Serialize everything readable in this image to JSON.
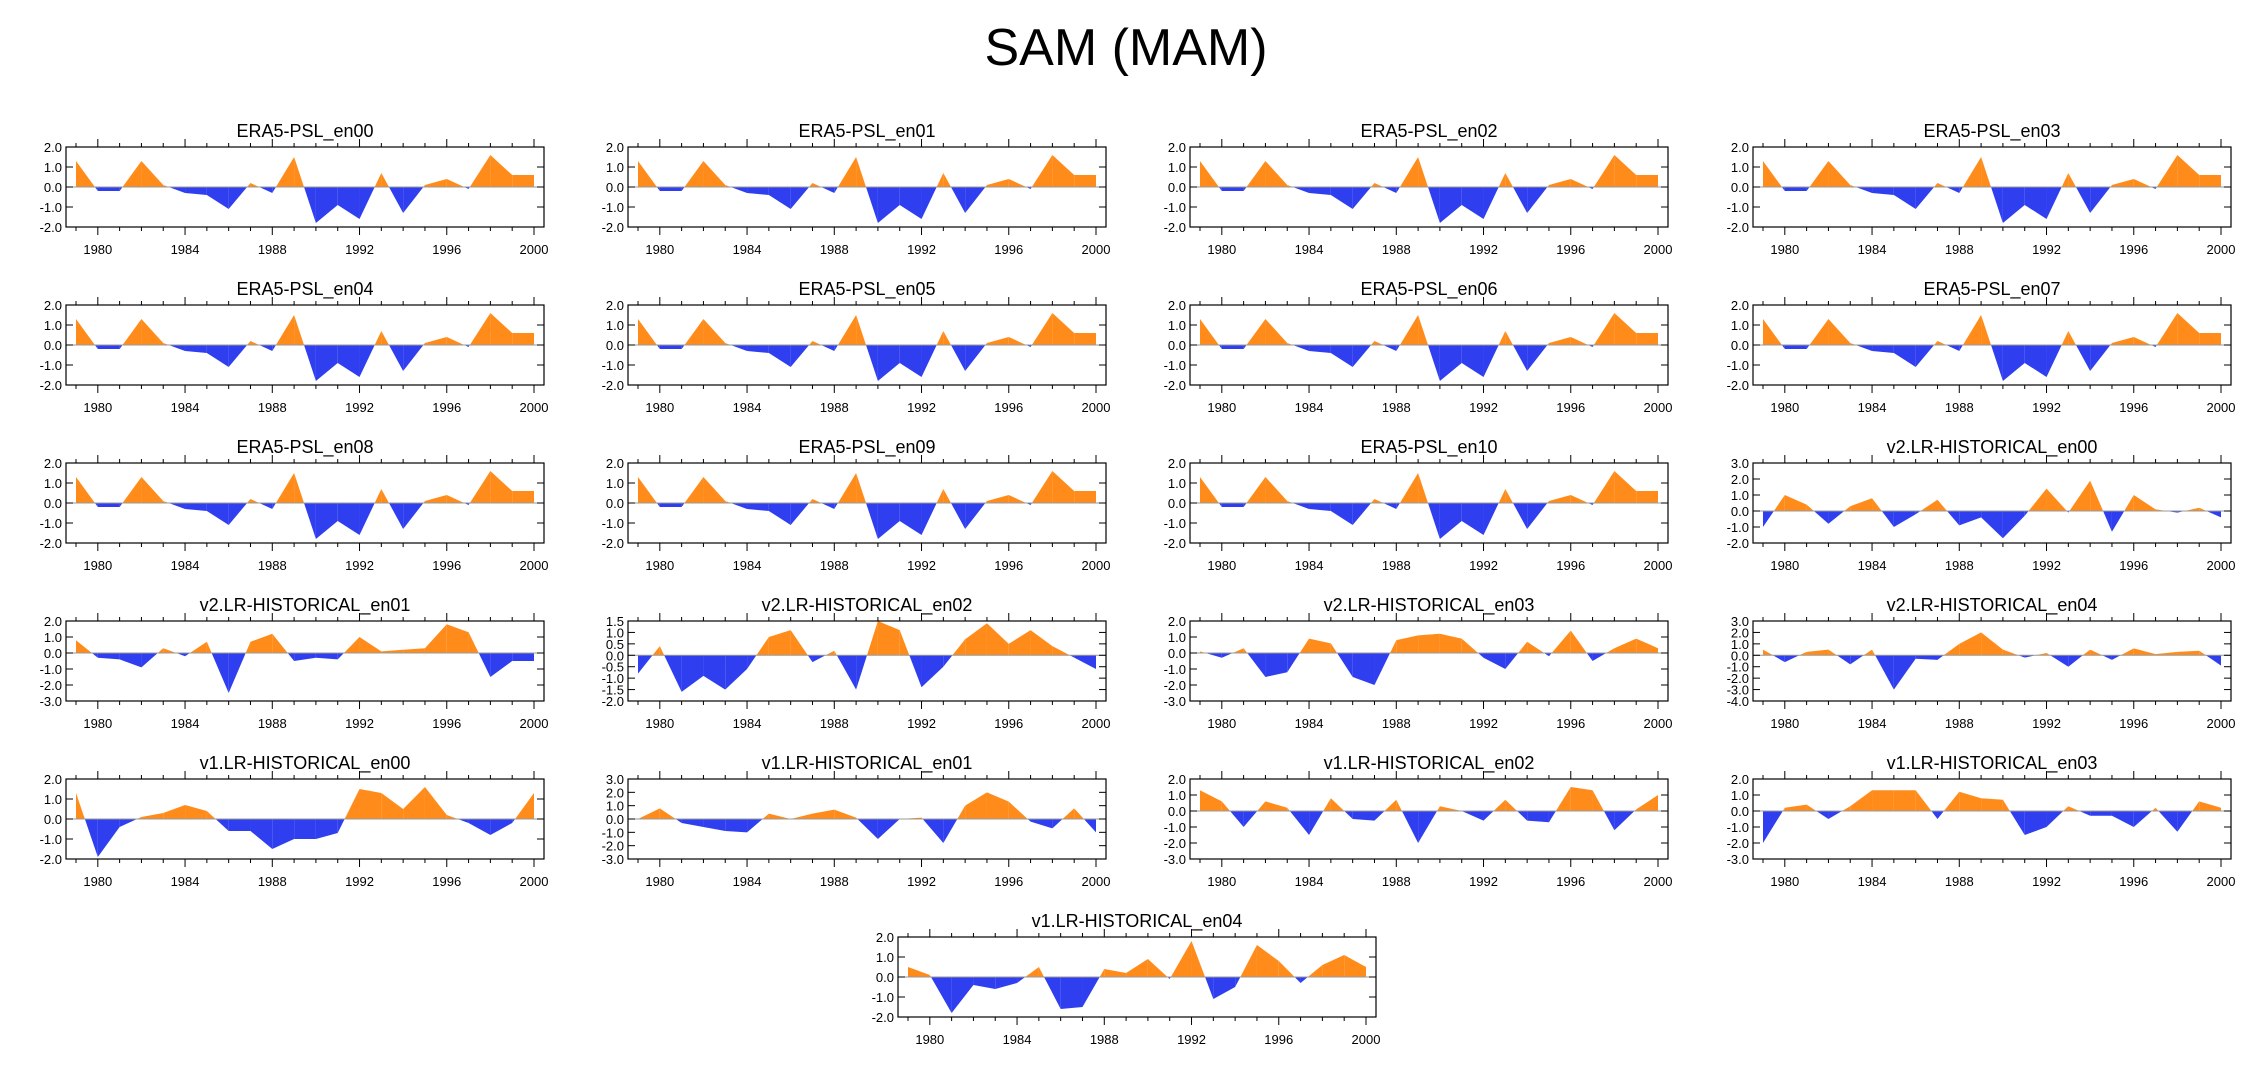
{
  "figure": {
    "title": "SAM (MAM)"
  },
  "colors": {
    "positive": "#ff8c1a",
    "negative": "#2f3ff0",
    "axis": "#000000",
    "zero_line": "#999999"
  },
  "chart_data": [
    {
      "type": "area",
      "title": "ERA5-PSL_en00",
      "x_start": 1979,
      "x_end": 2000,
      "xticks": [
        1980,
        1984,
        1988,
        1992,
        1996,
        2000
      ],
      "ylim": [
        -2.0,
        2.0
      ],
      "yticks": [
        "2.0",
        "1.0",
        "0.0",
        "-1.0",
        "-2.0"
      ],
      "ytick_values": [
        2,
        1,
        0,
        -1,
        -2
      ],
      "values": [
        1.3,
        -0.2,
        -0.2,
        1.3,
        0.1,
        -0.3,
        -0.4,
        -1.1,
        0.2,
        -0.3,
        1.5,
        -1.8,
        -0.9,
        -1.6,
        0.7,
        -1.3,
        0.1,
        0.4,
        -0.1,
        1.6,
        0.6,
        0.6
      ]
    },
    {
      "type": "area",
      "title": "ERA5-PSL_en01",
      "x_start": 1979,
      "x_end": 2000,
      "xticks": [
        1980,
        1984,
        1988,
        1992,
        1996,
        2000
      ],
      "ylim": [
        -2.0,
        2.0
      ],
      "yticks": [
        "2.0",
        "1.0",
        "0.0",
        "-1.0",
        "-2.0"
      ],
      "ytick_values": [
        2,
        1,
        0,
        -1,
        -2
      ],
      "values": [
        1.3,
        -0.2,
        -0.2,
        1.3,
        0.1,
        -0.3,
        -0.4,
        -1.1,
        0.2,
        -0.3,
        1.5,
        -1.8,
        -0.9,
        -1.6,
        0.7,
        -1.3,
        0.1,
        0.4,
        -0.1,
        1.6,
        0.6,
        0.6
      ]
    },
    {
      "type": "area",
      "title": "ERA5-PSL_en02",
      "x_start": 1979,
      "x_end": 2000,
      "xticks": [
        1980,
        1984,
        1988,
        1992,
        1996,
        2000
      ],
      "ylim": [
        -2.0,
        2.0
      ],
      "yticks": [
        "2.0",
        "1.0",
        "0.0",
        "-1.0",
        "-2.0"
      ],
      "ytick_values": [
        2,
        1,
        0,
        -1,
        -2
      ],
      "values": [
        1.3,
        -0.2,
        -0.2,
        1.3,
        0.1,
        -0.3,
        -0.4,
        -1.1,
        0.2,
        -0.3,
        1.5,
        -1.8,
        -0.9,
        -1.6,
        0.7,
        -1.3,
        0.1,
        0.4,
        -0.1,
        1.6,
        0.6,
        0.6
      ]
    },
    {
      "type": "area",
      "title": "ERA5-PSL_en03",
      "x_start": 1979,
      "x_end": 2000,
      "xticks": [
        1980,
        1984,
        1988,
        1992,
        1996,
        2000
      ],
      "ylim": [
        -2.0,
        2.0
      ],
      "yticks": [
        "2.0",
        "1.0",
        "0.0",
        "-1.0",
        "-2.0"
      ],
      "ytick_values": [
        2,
        1,
        0,
        -1,
        -2
      ],
      "values": [
        1.3,
        -0.2,
        -0.2,
        1.3,
        0.1,
        -0.3,
        -0.4,
        -1.1,
        0.2,
        -0.3,
        1.5,
        -1.8,
        -0.9,
        -1.6,
        0.7,
        -1.3,
        0.1,
        0.4,
        -0.1,
        1.6,
        0.6,
        0.6
      ]
    },
    {
      "type": "area",
      "title": "ERA5-PSL_en04",
      "x_start": 1979,
      "x_end": 2000,
      "xticks": [
        1980,
        1984,
        1988,
        1992,
        1996,
        2000
      ],
      "ylim": [
        -2.0,
        2.0
      ],
      "yticks": [
        "2.0",
        "1.0",
        "0.0",
        "-1.0",
        "-2.0"
      ],
      "ytick_values": [
        2,
        1,
        0,
        -1,
        -2
      ],
      "values": [
        1.3,
        -0.2,
        -0.2,
        1.3,
        0.1,
        -0.3,
        -0.4,
        -1.1,
        0.2,
        -0.3,
        1.5,
        -1.8,
        -0.9,
        -1.6,
        0.7,
        -1.3,
        0.1,
        0.4,
        -0.1,
        1.6,
        0.6,
        0.6
      ]
    },
    {
      "type": "area",
      "title": "ERA5-PSL_en05",
      "x_start": 1979,
      "x_end": 2000,
      "xticks": [
        1980,
        1984,
        1988,
        1992,
        1996,
        2000
      ],
      "ylim": [
        -2.0,
        2.0
      ],
      "yticks": [
        "2.0",
        "1.0",
        "0.0",
        "-1.0",
        "-2.0"
      ],
      "ytick_values": [
        2,
        1,
        0,
        -1,
        -2
      ],
      "values": [
        1.3,
        -0.2,
        -0.2,
        1.3,
        0.1,
        -0.3,
        -0.4,
        -1.1,
        0.2,
        -0.3,
        1.5,
        -1.8,
        -0.9,
        -1.6,
        0.7,
        -1.3,
        0.1,
        0.4,
        -0.1,
        1.6,
        0.6,
        0.6
      ]
    },
    {
      "type": "area",
      "title": "ERA5-PSL_en06",
      "x_start": 1979,
      "x_end": 2000,
      "xticks": [
        1980,
        1984,
        1988,
        1992,
        1996,
        2000
      ],
      "ylim": [
        -2.0,
        2.0
      ],
      "yticks": [
        "2.0",
        "1.0",
        "0.0",
        "-1.0",
        "-2.0"
      ],
      "ytick_values": [
        2,
        1,
        0,
        -1,
        -2
      ],
      "values": [
        1.3,
        -0.2,
        -0.2,
        1.3,
        0.1,
        -0.3,
        -0.4,
        -1.1,
        0.2,
        -0.3,
        1.5,
        -1.8,
        -0.9,
        -1.6,
        0.7,
        -1.3,
        0.1,
        0.4,
        -0.1,
        1.6,
        0.6,
        0.6
      ]
    },
    {
      "type": "area",
      "title": "ERA5-PSL_en07",
      "x_start": 1979,
      "x_end": 2000,
      "xticks": [
        1980,
        1984,
        1988,
        1992,
        1996,
        2000
      ],
      "ylim": [
        -2.0,
        2.0
      ],
      "yticks": [
        "2.0",
        "1.0",
        "0.0",
        "-1.0",
        "-2.0"
      ],
      "ytick_values": [
        2,
        1,
        0,
        -1,
        -2
      ],
      "values": [
        1.3,
        -0.2,
        -0.2,
        1.3,
        0.1,
        -0.3,
        -0.4,
        -1.1,
        0.2,
        -0.3,
        1.5,
        -1.8,
        -0.9,
        -1.6,
        0.7,
        -1.3,
        0.1,
        0.4,
        -0.1,
        1.6,
        0.6,
        0.6
      ]
    },
    {
      "type": "area",
      "title": "ERA5-PSL_en08",
      "x_start": 1979,
      "x_end": 2000,
      "xticks": [
        1980,
        1984,
        1988,
        1992,
        1996,
        2000
      ],
      "ylim": [
        -2.0,
        2.0
      ],
      "yticks": [
        "2.0",
        "1.0",
        "0.0",
        "-1.0",
        "-2.0"
      ],
      "ytick_values": [
        2,
        1,
        0,
        -1,
        -2
      ],
      "values": [
        1.3,
        -0.2,
        -0.2,
        1.3,
        0.1,
        -0.3,
        -0.4,
        -1.1,
        0.2,
        -0.3,
        1.5,
        -1.8,
        -0.9,
        -1.6,
        0.7,
        -1.3,
        0.1,
        0.4,
        -0.1,
        1.6,
        0.6,
        0.6
      ]
    },
    {
      "type": "area",
      "title": "ERA5-PSL_en09",
      "x_start": 1979,
      "x_end": 2000,
      "xticks": [
        1980,
        1984,
        1988,
        1992,
        1996,
        2000
      ],
      "ylim": [
        -2.0,
        2.0
      ],
      "yticks": [
        "2.0",
        "1.0",
        "0.0",
        "-1.0",
        "-2.0"
      ],
      "ytick_values": [
        2,
        1,
        0,
        -1,
        -2
      ],
      "values": [
        1.3,
        -0.2,
        -0.2,
        1.3,
        0.1,
        -0.3,
        -0.4,
        -1.1,
        0.2,
        -0.3,
        1.5,
        -1.8,
        -0.9,
        -1.6,
        0.7,
        -1.3,
        0.1,
        0.4,
        -0.1,
        1.6,
        0.6,
        0.6
      ]
    },
    {
      "type": "area",
      "title": "ERA5-PSL_en10",
      "x_start": 1979,
      "x_end": 2000,
      "xticks": [
        1980,
        1984,
        1988,
        1992,
        1996,
        2000
      ],
      "ylim": [
        -2.0,
        2.0
      ],
      "yticks": [
        "2.0",
        "1.0",
        "0.0",
        "-1.0",
        "-2.0"
      ],
      "ytick_values": [
        2,
        1,
        0,
        -1,
        -2
      ],
      "values": [
        1.3,
        -0.2,
        -0.2,
        1.3,
        0.1,
        -0.3,
        -0.4,
        -1.1,
        0.2,
        -0.3,
        1.5,
        -1.8,
        -0.9,
        -1.6,
        0.7,
        -1.3,
        0.1,
        0.4,
        -0.1,
        1.6,
        0.6,
        0.6
      ]
    },
    {
      "type": "area",
      "title": "v2.LR-HISTORICAL_en00",
      "x_start": 1979,
      "x_end": 2000,
      "xticks": [
        1980,
        1984,
        1988,
        1992,
        1996,
        2000
      ],
      "ylim": [
        -2.0,
        3.0
      ],
      "yticks": [
        "3.0",
        "2.0",
        "1.0",
        "0.0",
        "-1.0",
        "-2.0"
      ],
      "ytick_values": [
        3,
        2,
        1,
        0,
        -1,
        -2
      ],
      "values": [
        -1.0,
        1.0,
        0.4,
        -0.8,
        0.3,
        0.8,
        -1.0,
        -0.2,
        0.7,
        -0.9,
        -0.4,
        -1.7,
        -0.3,
        1.4,
        -0.1,
        1.9,
        -1.3,
        1.0,
        0.1,
        -0.1,
        0.2,
        -0.4
      ]
    },
    {
      "type": "area",
      "title": "v2.LR-HISTORICAL_en01",
      "x_start": 1979,
      "x_end": 2000,
      "xticks": [
        1980,
        1984,
        1988,
        1992,
        1996,
        2000
      ],
      "ylim": [
        -3.0,
        2.0
      ],
      "yticks": [
        "2.0",
        "1.0",
        "0.0",
        "-1.0",
        "-2.0",
        "-3.0"
      ],
      "ytick_values": [
        2,
        1,
        0,
        -1,
        -2,
        -3
      ],
      "values": [
        0.8,
        -0.3,
        -0.4,
        -0.9,
        0.3,
        -0.2,
        0.7,
        -2.5,
        0.7,
        1.2,
        -0.5,
        -0.3,
        -0.4,
        1.0,
        0.1,
        0.2,
        0.3,
        1.8,
        1.3,
        -1.5,
        -0.5,
        -0.5
      ]
    },
    {
      "type": "area",
      "title": "v2.LR-HISTORICAL_en02",
      "x_start": 1979,
      "x_end": 2000,
      "xticks": [
        1980,
        1984,
        1988,
        1992,
        1996,
        2000
      ],
      "ylim": [
        -2.0,
        1.5
      ],
      "yticks": [
        "1.5",
        "1.0",
        "0.5",
        "0.0",
        "-0.5",
        "-1.0",
        "-1.5",
        "-2.0"
      ],
      "ytick_values": [
        1.5,
        1,
        0.5,
        0,
        -0.5,
        -1,
        -1.5,
        -2
      ],
      "values": [
        -0.8,
        0.4,
        -1.6,
        -0.9,
        -1.5,
        -0.6,
        0.8,
        1.1,
        -0.3,
        0.2,
        -1.5,
        1.5,
        1.1,
        -1.4,
        -0.5,
        0.7,
        1.4,
        0.5,
        1.1,
        0.4,
        -0.1,
        -0.6
      ]
    },
    {
      "type": "area",
      "title": "v2.LR-HISTORICAL_en03",
      "x_start": 1979,
      "x_end": 2000,
      "xticks": [
        1980,
        1984,
        1988,
        1992,
        1996,
        2000
      ],
      "ylim": [
        -3.0,
        2.0
      ],
      "yticks": [
        "2.0",
        "1.0",
        "0.0",
        "-1.0",
        "-2.0",
        "-3.0"
      ],
      "ytick_values": [
        2,
        1,
        0,
        -1,
        -2,
        -3
      ],
      "values": [
        0.1,
        -0.3,
        0.3,
        -1.5,
        -1.2,
        0.9,
        0.6,
        -1.5,
        -2.0,
        0.8,
        1.1,
        1.2,
        0.9,
        -0.3,
        -1.0,
        0.7,
        -0.2,
        1.4,
        -0.5,
        0.3,
        0.9,
        0.3
      ]
    },
    {
      "type": "area",
      "title": "v2.LR-HISTORICAL_en04",
      "x_start": 1979,
      "x_end": 2000,
      "xticks": [
        1980,
        1984,
        1988,
        1992,
        1996,
        2000
      ],
      "ylim": [
        -4.0,
        3.0
      ],
      "yticks": [
        "3.0",
        "2.0",
        "1.0",
        "0.0",
        "-1.0",
        "-2.0",
        "-3.0",
        "-4.0"
      ],
      "ytick_values": [
        3,
        2,
        1,
        0,
        -1,
        -2,
        -3,
        -4
      ],
      "values": [
        0.5,
        -0.6,
        0.3,
        0.5,
        -0.8,
        0.5,
        -3.0,
        -0.3,
        -0.4,
        1.0,
        2.0,
        0.5,
        -0.2,
        0.2,
        -1.0,
        0.5,
        -0.4,
        0.6,
        0.1,
        0.3,
        0.4,
        -0.9
      ]
    },
    {
      "type": "area",
      "title": "v1.LR-HISTORICAL_en00",
      "x_start": 1979,
      "x_end": 2000,
      "xticks": [
        1980,
        1984,
        1988,
        1992,
        1996,
        2000
      ],
      "ylim": [
        -2.0,
        2.0
      ],
      "yticks": [
        "2.0",
        "1.0",
        "0.0",
        "-1.0",
        "-2.0"
      ],
      "ytick_values": [
        2,
        1,
        0,
        -1,
        -2
      ],
      "values": [
        1.3,
        -1.9,
        -0.4,
        0.1,
        0.3,
        0.7,
        0.4,
        -0.6,
        -0.6,
        -1.5,
        -1.0,
        -1.0,
        -0.7,
        1.5,
        1.3,
        0.5,
        1.6,
        0.2,
        -0.2,
        -0.8,
        -0.2,
        1.3
      ]
    },
    {
      "type": "area",
      "title": "v1.LR-HISTORICAL_en01",
      "x_start": 1979,
      "x_end": 2000,
      "xticks": [
        1980,
        1984,
        1988,
        1992,
        1996,
        2000
      ],
      "ylim": [
        -3.0,
        3.0
      ],
      "yticks": [
        "3.0",
        "2.0",
        "1.0",
        "0.0",
        "-1.0",
        "-2.0",
        "-3.0"
      ],
      "ytick_values": [
        3,
        2,
        1,
        0,
        -1,
        -2,
        -3
      ],
      "values": [
        0.0,
        0.8,
        -0.3,
        -0.6,
        -0.9,
        -1.0,
        0.4,
        0.0,
        0.4,
        0.7,
        0.1,
        -1.5,
        0.0,
        0.1,
        -1.8,
        1.0,
        2.0,
        1.3,
        -0.2,
        -0.7,
        0.8,
        -1.0
      ]
    },
    {
      "type": "area",
      "title": "v1.LR-HISTORICAL_en02",
      "x_start": 1979,
      "x_end": 2000,
      "xticks": [
        1980,
        1984,
        1988,
        1992,
        1996,
        2000
      ],
      "ylim": [
        -3.0,
        2.0
      ],
      "yticks": [
        "2.0",
        "1.0",
        "0.0",
        "-1.0",
        "-2.0",
        "-3.0"
      ],
      "ytick_values": [
        2,
        1,
        0,
        -1,
        -2,
        -3
      ],
      "values": [
        1.3,
        0.6,
        -1.0,
        0.6,
        0.2,
        -1.5,
        0.8,
        -0.5,
        -0.6,
        0.7,
        -2.0,
        0.3,
        0.0,
        -0.6,
        0.7,
        -0.6,
        -0.7,
        1.5,
        1.3,
        -1.2,
        0.1,
        1.0
      ]
    },
    {
      "type": "area",
      "title": "v1.LR-HISTORICAL_en03",
      "x_start": 1979,
      "x_end": 2000,
      "xticks": [
        1980,
        1984,
        1988,
        1992,
        1996,
        2000
      ],
      "ylim": [
        -3.0,
        2.0
      ],
      "yticks": [
        "2.0",
        "1.0",
        "0.0",
        "-1.0",
        "-2.0",
        "-3.0"
      ],
      "ytick_values": [
        2,
        1,
        0,
        -1,
        -2,
        -3
      ],
      "values": [
        -2.0,
        0.2,
        0.4,
        -0.5,
        0.3,
        1.3,
        1.3,
        1.3,
        -0.5,
        1.2,
        0.8,
        0.7,
        -1.5,
        -1.0,
        0.3,
        -0.3,
        -0.3,
        -1.0,
        0.2,
        -1.3,
        0.6,
        0.2
      ]
    },
    {
      "type": "area",
      "title": "v1.LR-HISTORICAL_en04",
      "x_start": 1979,
      "x_end": 2000,
      "xticks": [
        1980,
        1984,
        1988,
        1992,
        1996,
        2000
      ],
      "ylim": [
        -2.0,
        2.0
      ],
      "yticks": [
        "2.0",
        "1.0",
        "0.0",
        "-1.0",
        "-2.0"
      ],
      "ytick_values": [
        2,
        1,
        0,
        -1,
        -2
      ],
      "values": [
        0.5,
        0.1,
        -1.8,
        -0.4,
        -0.6,
        -0.3,
        0.5,
        -1.6,
        -1.5,
        0.4,
        0.2,
        0.9,
        -0.1,
        1.8,
        -1.1,
        -0.5,
        1.6,
        0.8,
        -0.3,
        0.6,
        1.1,
        0.5
      ]
    }
  ]
}
